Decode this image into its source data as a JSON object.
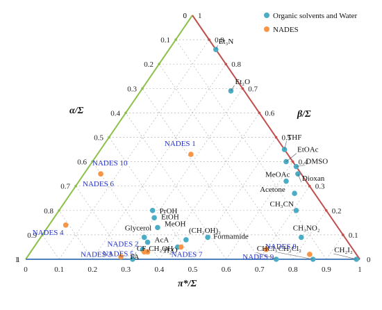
{
  "chart_data": {
    "type": "scatter",
    "subtype": "ternary",
    "axes": {
      "alpha": {
        "title": "α/Σ",
        "color": "#8dc04a"
      },
      "beta": {
        "title": "β/Σ",
        "color": "#c0504d"
      },
      "pi": {
        "title": "π*/Σ",
        "color": "#4f81bd"
      }
    },
    "ticks": [
      "0",
      "0.1",
      "0.2",
      "0.3",
      "0.4",
      "0.5",
      "0.6",
      "0.7",
      "0.8",
      "0.9",
      "1"
    ],
    "grid": true,
    "legend": {
      "position": "top-right",
      "items": [
        {
          "name": "Organic solvents and Water",
          "color": "#4bacc6"
        },
        {
          "name": "NADES",
          "color": "#f79646"
        }
      ]
    },
    "series": [
      {
        "name": "Organic solvents and Water",
        "color": "#4bacc6",
        "points": [
          {
            "label": "Et₃N",
            "pi": 0.14,
            "beta": 0.86,
            "label_dx": 4,
            "label_dy": -8,
            "leader": true
          },
          {
            "label": "Et₂O",
            "pi": 0.27,
            "beta": 0.69,
            "label_dx": 6,
            "label_dy": -10,
            "leader": true
          },
          {
            "label": "THF",
            "pi": 0.55,
            "beta": 0.45,
            "label_dx": 4,
            "label_dy": -14,
            "leader": true
          },
          {
            "label": "EtOAc",
            "pi": 0.58,
            "beta": 0.4,
            "label_dx": 16,
            "label_dy": -14,
            "leader": true
          },
          {
            "label": "DMSO",
            "pi": 0.62,
            "beta": 0.38,
            "label_dx": 14,
            "label_dy": -4,
            "leader": true
          },
          {
            "label": "Dioxan",
            "pi": 0.64,
            "beta": 0.35,
            "label_dx": 6,
            "label_dy": 10,
            "leader": true
          },
          {
            "label": "MeOAc",
            "pi": 0.62,
            "beta": 0.32,
            "label_dx": -30,
            "label_dy": -6,
            "leader": false
          },
          {
            "label": "Acetone",
            "pi": 0.67,
            "beta": 0.27,
            "label_dx": -50,
            "label_dy": -2,
            "leader": false
          },
          {
            "label": "CH₃CN",
            "pi": 0.71,
            "beta": 0.2,
            "label_dx": -38,
            "label_dy": -6,
            "leader": false
          },
          {
            "label": "PrOH",
            "pi": 0.28,
            "beta": 0.2,
            "label_dx": 10,
            "label_dy": 4,
            "leader": false
          },
          {
            "label": "EtOH",
            "pi": 0.3,
            "beta": 0.17,
            "label_dx": 10,
            "label_dy": 2,
            "leader": false
          },
          {
            "label": "MeOH",
            "pi": 0.33,
            "beta": 0.13,
            "label_dx": 10,
            "label_dy": -2,
            "leader": false
          },
          {
            "label": "Glycerol",
            "pi": 0.31,
            "beta": 0.09,
            "label_dx": -28,
            "label_dy": -10,
            "leader": false
          },
          {
            "label": "AcA",
            "pi": 0.33,
            "beta": 0.07,
            "label_dx": 10,
            "label_dy": 0,
            "leader": false
          },
          {
            "label": "FA",
            "pi": 0.33,
            "beta": 0.04,
            "label_dx": -18,
            "label_dy": 14,
            "leader": false
          },
          {
            "label": "(CH₂OH)₂",
            "pi": 0.44,
            "beta": 0.08,
            "label_dx": 4,
            "label_dy": -10,
            "leader": false
          },
          {
            "label": "Formamide",
            "pi": 0.5,
            "beta": 0.09,
            "label_dx": 8,
            "label_dy": 2,
            "leader": false
          },
          {
            "label": "H₂O",
            "pi": 0.43,
            "beta": 0.05,
            "label_dx": -20,
            "label_dy": 8,
            "leader": false
          },
          {
            "label": "CH₃NO₂",
            "pi": 0.78,
            "beta": 0.09,
            "label_dx": -12,
            "label_dy": -10,
            "leader": false
          },
          {
            "label": "CF₃CH₂OH",
            "pi": 0.32,
            "beta": 0.0,
            "label_dx": 6,
            "label_dy": -12,
            "leader": true
          },
          {
            "label": "CHCl₃",
            "pi": 0.75,
            "beta": 0.0,
            "label_dx": -28,
            "label_dy": -12,
            "leader": true
          },
          {
            "label": "CH₂Cl₂",
            "pi": 0.86,
            "beta": 0.0,
            "label_dx": -50,
            "label_dy": -12,
            "leader": true
          },
          {
            "label": "CH₂I₂",
            "pi": 0.99,
            "beta": 0.0,
            "label_dx": -32,
            "label_dy": -10,
            "leader": true
          }
        ]
      },
      {
        "name": "NADES",
        "color": "#f79646",
        "points": [
          {
            "label": "NADES 10",
            "pi": 0.05,
            "beta": 0.35,
            "label_dx": -12,
            "label_dy": -12,
            "leader": false
          },
          {
            "label": "NADES 6",
            "pi": 0.05,
            "beta": 0.35,
            "label_dx": -26,
            "label_dy": 18,
            "leader": false
          },
          {
            "label": "NADES 1",
            "pi": 0.28,
            "beta": 0.43,
            "label_dx": -38,
            "label_dy": -12,
            "leader": false
          },
          {
            "label": "NADES 4",
            "pi": 0.05,
            "beta": 0.14,
            "label_dx": -48,
            "label_dy": 14,
            "leader": false
          },
          {
            "label": "NADES 2",
            "pi": 0.35,
            "beta": 0.03,
            "label_dx": -58,
            "label_dy": -8,
            "leader": false
          },
          {
            "label": "NADES 5",
            "pi": 0.34,
            "beta": 0.03,
            "label_dx": -60,
            "label_dy": 6,
            "leader": false
          },
          {
            "label": "NADES 7",
            "pi": 0.44,
            "beta": 0.05,
            "label_dx": -14,
            "label_dy": 14,
            "leader": false
          },
          {
            "label": "NADES 9",
            "pi": 0.7,
            "beta": 0.04,
            "label_dx": -34,
            "label_dy": 14,
            "leader": false
          },
          {
            "label": "NADES 8",
            "pi": 0.84,
            "beta": 0.02,
            "label_dx": -64,
            "label_dy": -8,
            "leader": false
          },
          {
            "label": "NADES 3",
            "pi": 0.28,
            "beta": 0.01,
            "label_dx": -58,
            "label_dy": 0,
            "leader": false
          }
        ]
      }
    ]
  }
}
